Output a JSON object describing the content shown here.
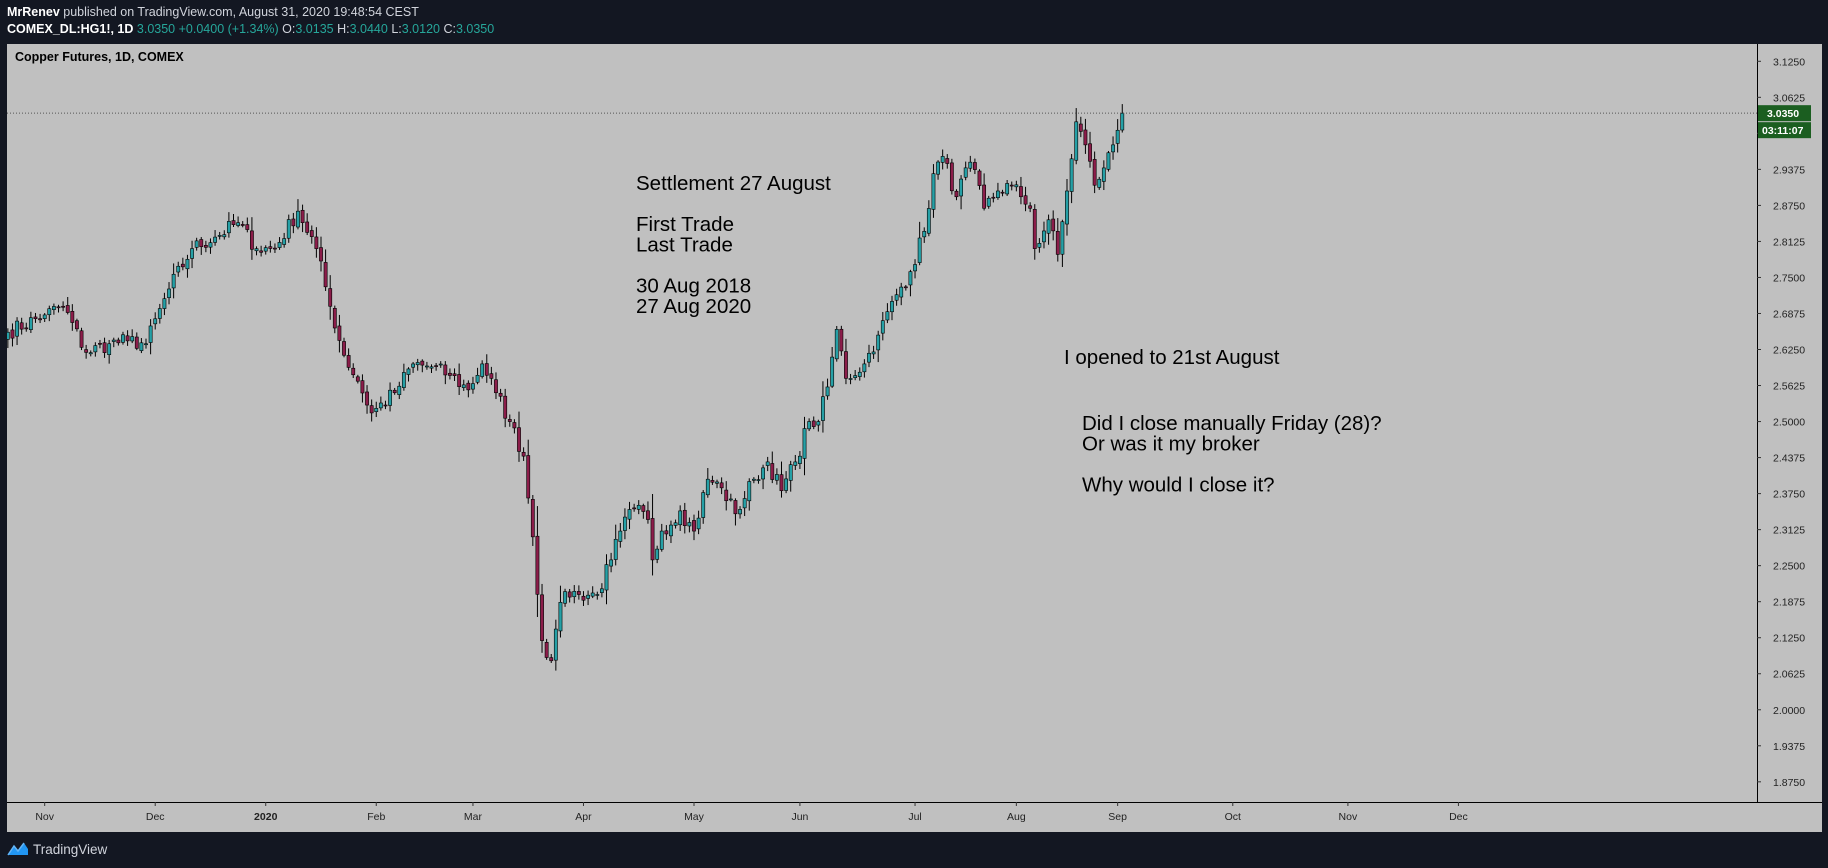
{
  "header": {
    "author": "MrRenev",
    "published_text": " published on TradingView.com, August 31, 2020 19:48:54 CEST",
    "symbol_line": {
      "symbol": "COMEX_DL:HG1!, 1D",
      "last": "3.0350",
      "change": "+0.0400 (+1.34%)",
      "o_label": "O:",
      "o": "3.0135",
      "h_label": "H:",
      "h": "3.0440",
      "l_label": "L:",
      "l": "3.0120",
      "c_label": "C:",
      "c": "3.0350"
    }
  },
  "footer": {
    "brand": "TradingView",
    "brand_icon": "tradingview-logo-icon"
  },
  "colors": {
    "page_bg": "#131722",
    "plot_bg": "#c0c0c0",
    "up": "#26a0a6",
    "down": "#8b1d4a",
    "wick": "#000000",
    "price_label_bg": "#1b5e20",
    "text": "#000000"
  },
  "chart_data": {
    "type": "candlestick",
    "title": "Copper Futures, 1D, COMEX",
    "ylim": [
      1.84,
      3.155
    ],
    "y_ticks": [
      "3.1250",
      "3.0625",
      "3.0000",
      "2.9375",
      "2.8750",
      "2.8125",
      "2.7500",
      "2.6875",
      "2.6250",
      "2.5625",
      "2.5000",
      "2.4375",
      "2.3750",
      "2.3125",
      "2.2500",
      "2.1875",
      "2.1250",
      "2.0625",
      "2.0000",
      "1.9375",
      "1.8750"
    ],
    "x_ticks": [
      "Nov",
      "Dec",
      "2020",
      "Feb",
      "Mar",
      "Apr",
      "May",
      "Jun",
      "Jul",
      "Aug",
      "Sep",
      "Oct",
      "Nov",
      "Dec"
    ],
    "x_tick_bar_index": [
      8,
      32,
      56,
      80,
      101,
      125,
      149,
      172,
      197,
      219,
      241,
      266,
      291,
      315
    ],
    "last_price": 3.035,
    "last_price_label": "3.0350",
    "countdown_label": "03:11:07",
    "grid": false,
    "keypoints": [
      [
        0,
        2.655
      ],
      [
        8,
        2.685
      ],
      [
        12,
        2.7
      ],
      [
        17,
        2.62
      ],
      [
        22,
        2.635
      ],
      [
        26,
        2.64
      ],
      [
        30,
        2.635
      ],
      [
        35,
        2.73
      ],
      [
        40,
        2.8
      ],
      [
        45,
        2.82
      ],
      [
        50,
        2.845
      ],
      [
        54,
        2.8
      ],
      [
        58,
        2.8
      ],
      [
        63,
        2.865
      ],
      [
        67,
        2.8
      ],
      [
        70,
        2.7
      ],
      [
        73,
        2.615
      ],
      [
        76,
        2.57
      ],
      [
        79,
        2.515
      ],
      [
        84,
        2.55
      ],
      [
        88,
        2.6
      ],
      [
        92,
        2.595
      ],
      [
        96,
        2.58
      ],
      [
        100,
        2.555
      ],
      [
        103,
        2.6
      ],
      [
        106,
        2.55
      ],
      [
        109,
        2.5
      ],
      [
        112,
        2.44
      ],
      [
        114,
        2.3
      ],
      [
        116,
        2.12
      ],
      [
        118,
        2.085
      ],
      [
        119,
        2.14
      ],
      [
        121,
        2.205
      ],
      [
        124,
        2.2
      ],
      [
        128,
        2.2
      ],
      [
        131,
        2.26
      ],
      [
        133,
        2.31
      ],
      [
        136,
        2.35
      ],
      [
        139,
        2.33
      ],
      [
        140,
        2.26
      ],
      [
        142,
        2.31
      ],
      [
        146,
        2.345
      ],
      [
        149,
        2.31
      ],
      [
        152,
        2.4
      ],
      [
        155,
        2.385
      ],
      [
        158,
        2.34
      ],
      [
        162,
        2.4
      ],
      [
        165,
        2.43
      ],
      [
        168,
        2.38
      ],
      [
        171,
        2.43
      ],
      [
        174,
        2.5
      ],
      [
        176,
        2.5
      ],
      [
        178,
        2.56
      ],
      [
        180,
        2.66
      ],
      [
        182,
        2.575
      ],
      [
        186,
        2.6
      ],
      [
        189,
        2.65
      ],
      [
        193,
        2.72
      ],
      [
        196,
        2.76
      ],
      [
        199,
        2.83
      ],
      [
        201,
        2.93
      ],
      [
        203,
        2.96
      ],
      [
        206,
        2.89
      ],
      [
        209,
        2.95
      ],
      [
        212,
        2.87
      ],
      [
        215,
        2.9
      ],
      [
        218,
        2.91
      ],
      [
        220,
        2.89
      ],
      [
        222,
        2.87
      ],
      [
        223,
        2.8
      ],
      [
        226,
        2.85
      ],
      [
        228,
        2.79
      ],
      [
        230,
        2.9
      ],
      [
        232,
        3.02
      ],
      [
        234,
        2.98
      ],
      [
        236,
        2.91
      ],
      [
        238,
        2.94
      ],
      [
        240,
        2.98
      ],
      [
        242,
        3.035
      ]
    ],
    "annotations": [
      {
        "lines": [
          "Settlement 27 August",
          "",
          "First Trade",
          "Last Trade",
          "",
          "30 Aug 2018",
          "27 Aug 2020"
        ]
      },
      {
        "lines": [
          "I opened to 21st August"
        ]
      },
      {
        "lines": [
          "Did I close manually Friday (28)?",
          "Or was it my broker",
          "",
          "Why would I close it?"
        ]
      }
    ]
  }
}
